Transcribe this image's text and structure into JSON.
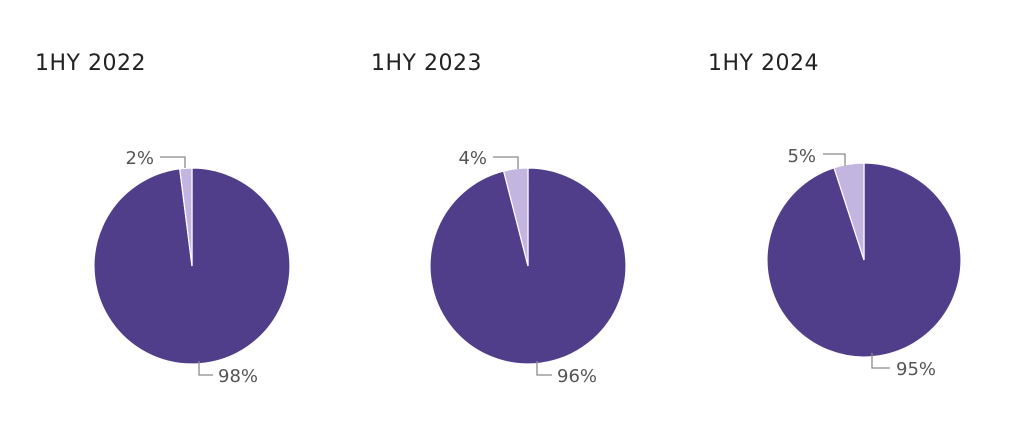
{
  "chart_data": [
    {
      "type": "pie",
      "title": "1HY 2022",
      "slices": [
        {
          "value": 98,
          "label": "98%",
          "color": "#513e8b"
        },
        {
          "value": 2,
          "label": "2%",
          "color": "#c2b6e0"
        }
      ]
    },
    {
      "type": "pie",
      "title": "1HY 2023",
      "slices": [
        {
          "value": 96,
          "label": "96%",
          "color": "#513e8b"
        },
        {
          "value": 4,
          "label": "4%",
          "color": "#c2b6e0"
        }
      ]
    },
    {
      "type": "pie",
      "title": "1HY 2024",
      "slices": [
        {
          "value": 95,
          "label": "95%",
          "color": "#513e8b"
        },
        {
          "value": 5,
          "label": "5%",
          "color": "#c2b6e0"
        }
      ]
    }
  ]
}
